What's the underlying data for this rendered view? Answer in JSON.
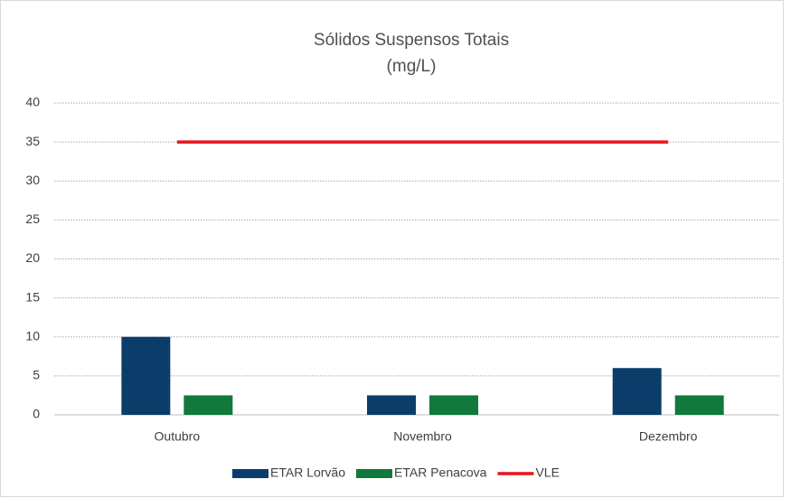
{
  "chart_data": {
    "type": "bar",
    "title": "Sólidos Suspensos Totais",
    "subtitle": "(mg/L)",
    "categories": [
      "Outubro",
      "Novembro",
      "Dezembro"
    ],
    "series": [
      {
        "name": "ETAR Lorvão",
        "color": "#0b3d6b",
        "values": [
          10,
          2.5,
          6
        ]
      },
      {
        "name": "ETAR Penacova",
        "color": "#10793b",
        "values": [
          2.5,
          2.5,
          2.5
        ]
      },
      {
        "name": "VLE",
        "color": "#e8141b",
        "type": "line",
        "values": [
          35,
          35,
          35
        ]
      }
    ],
    "ylim": [
      0,
      40
    ],
    "yticks": [
      0,
      5,
      10,
      15,
      20,
      25,
      30,
      35,
      40
    ],
    "grid": true,
    "legend": "bottom"
  }
}
